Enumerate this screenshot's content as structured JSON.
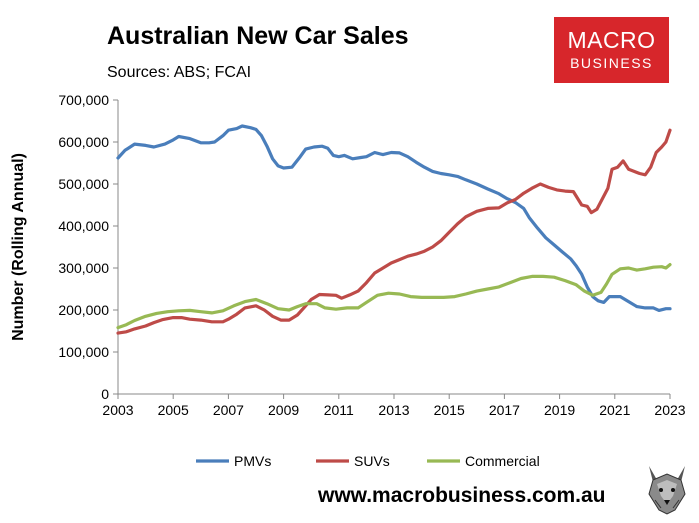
{
  "header": {
    "title": "Australian New Car Sales",
    "subtitle": "Sources: ABS; FCAI"
  },
  "logo": {
    "line1": "MACRO",
    "line2": "BUSINESS",
    "color": "#d7262b"
  },
  "footer": {
    "url": "www.macrobusiness.com.au"
  },
  "chart_data": {
    "type": "line",
    "title": "Australian New Car Sales",
    "ylabel": "Number (Rolling Annual)",
    "xlabel": "",
    "xlim": [
      2003,
      2023
    ],
    "ylim": [
      0,
      700000
    ],
    "x_ticks": [
      2003,
      2005,
      2007,
      2009,
      2011,
      2013,
      2015,
      2017,
      2019,
      2021,
      2023
    ],
    "y_ticks": [
      0,
      100000,
      200000,
      300000,
      400000,
      500000,
      600000,
      700000
    ],
    "y_tick_labels": [
      "0",
      "100,000",
      "200,000",
      "300,000",
      "400,000",
      "500,000",
      "600,000",
      "700,000"
    ],
    "legend_position": "bottom",
    "grid": false,
    "series": [
      {
        "name": "PMVs",
        "color": "#4a7ebb",
        "points": [
          [
            2003.0,
            562000
          ],
          [
            2003.25,
            580000
          ],
          [
            2003.6,
            595000
          ],
          [
            2004.0,
            592000
          ],
          [
            2004.3,
            588000
          ],
          [
            2004.7,
            595000
          ],
          [
            2005.0,
            605000
          ],
          [
            2005.2,
            613000
          ],
          [
            2005.6,
            608000
          ],
          [
            2006.0,
            598000
          ],
          [
            2006.3,
            598000
          ],
          [
            2006.5,
            600000
          ],
          [
            2006.8,
            615000
          ],
          [
            2007.0,
            628000
          ],
          [
            2007.3,
            632000
          ],
          [
            2007.5,
            638000
          ],
          [
            2007.8,
            634000
          ],
          [
            2008.0,
            630000
          ],
          [
            2008.2,
            615000
          ],
          [
            2008.4,
            590000
          ],
          [
            2008.6,
            560000
          ],
          [
            2008.8,
            543000
          ],
          [
            2009.0,
            538000
          ],
          [
            2009.3,
            540000
          ],
          [
            2009.6,
            565000
          ],
          [
            2009.8,
            583000
          ],
          [
            2010.1,
            588000
          ],
          [
            2010.4,
            590000
          ],
          [
            2010.6,
            585000
          ],
          [
            2010.8,
            568000
          ],
          [
            2011.0,
            565000
          ],
          [
            2011.2,
            568000
          ],
          [
            2011.5,
            560000
          ],
          [
            2011.8,
            563000
          ],
          [
            2012.0,
            565000
          ],
          [
            2012.3,
            575000
          ],
          [
            2012.6,
            570000
          ],
          [
            2012.9,
            575000
          ],
          [
            2013.2,
            574000
          ],
          [
            2013.5,
            565000
          ],
          [
            2013.8,
            552000
          ],
          [
            2014.1,
            540000
          ],
          [
            2014.4,
            530000
          ],
          [
            2014.7,
            525000
          ],
          [
            2015.0,
            522000
          ],
          [
            2015.3,
            518000
          ],
          [
            2015.6,
            510000
          ],
          [
            2016.0,
            500000
          ],
          [
            2016.4,
            488000
          ],
          [
            2016.8,
            477000
          ],
          [
            2017.1,
            465000
          ],
          [
            2017.4,
            456000
          ],
          [
            2017.7,
            442000
          ],
          [
            2017.9,
            420000
          ],
          [
            2018.2,
            395000
          ],
          [
            2018.5,
            372000
          ],
          [
            2018.8,
            355000
          ],
          [
            2019.1,
            338000
          ],
          [
            2019.4,
            322000
          ],
          [
            2019.6,
            305000
          ],
          [
            2019.8,
            285000
          ],
          [
            2020.0,
            255000
          ],
          [
            2020.2,
            232000
          ],
          [
            2020.4,
            222000
          ],
          [
            2020.6,
            218000
          ],
          [
            2020.8,
            232000
          ],
          [
            2021.2,
            232000
          ],
          [
            2021.5,
            220000
          ],
          [
            2021.8,
            208000
          ],
          [
            2022.1,
            205000
          ],
          [
            2022.4,
            205000
          ],
          [
            2022.6,
            199000
          ],
          [
            2022.85,
            203000
          ],
          [
            2023.0,
            203000
          ]
        ]
      },
      {
        "name": "SUVs",
        "color": "#be4b48",
        "points": [
          [
            2003.0,
            145000
          ],
          [
            2003.3,
            148000
          ],
          [
            2003.6,
            155000
          ],
          [
            2004.0,
            162000
          ],
          [
            2004.3,
            170000
          ],
          [
            2004.6,
            177000
          ],
          [
            2005.0,
            182000
          ],
          [
            2005.3,
            182000
          ],
          [
            2005.6,
            178000
          ],
          [
            2006.0,
            176000
          ],
          [
            2006.4,
            172000
          ],
          [
            2006.8,
            172000
          ],
          [
            2007.0,
            178000
          ],
          [
            2007.3,
            190000
          ],
          [
            2007.6,
            205000
          ],
          [
            2008.0,
            210000
          ],
          [
            2008.3,
            200000
          ],
          [
            2008.6,
            185000
          ],
          [
            2008.9,
            176000
          ],
          [
            2009.2,
            176000
          ],
          [
            2009.5,
            188000
          ],
          [
            2009.8,
            210000
          ],
          [
            2010.0,
            225000
          ],
          [
            2010.3,
            237000
          ],
          [
            2010.6,
            236000
          ],
          [
            2010.9,
            235000
          ],
          [
            2011.1,
            228000
          ],
          [
            2011.4,
            236000
          ],
          [
            2011.7,
            245000
          ],
          [
            2012.0,
            265000
          ],
          [
            2012.3,
            288000
          ],
          [
            2012.6,
            300000
          ],
          [
            2012.9,
            312000
          ],
          [
            2013.2,
            320000
          ],
          [
            2013.5,
            328000
          ],
          [
            2013.8,
            333000
          ],
          [
            2014.1,
            340000
          ],
          [
            2014.4,
            350000
          ],
          [
            2014.7,
            365000
          ],
          [
            2015.0,
            385000
          ],
          [
            2015.3,
            405000
          ],
          [
            2015.6,
            422000
          ],
          [
            2016.0,
            435000
          ],
          [
            2016.4,
            442000
          ],
          [
            2016.8,
            443000
          ],
          [
            2017.1,
            455000
          ],
          [
            2017.4,
            463000
          ],
          [
            2017.7,
            478000
          ],
          [
            2018.0,
            490000
          ],
          [
            2018.3,
            500000
          ],
          [
            2018.6,
            492000
          ],
          [
            2018.9,
            486000
          ],
          [
            2019.2,
            483000
          ],
          [
            2019.5,
            482000
          ],
          [
            2019.8,
            450000
          ],
          [
            2020.0,
            447000
          ],
          [
            2020.15,
            432000
          ],
          [
            2020.35,
            440000
          ],
          [
            2020.55,
            465000
          ],
          [
            2020.75,
            490000
          ],
          [
            2020.9,
            535000
          ],
          [
            2021.1,
            540000
          ],
          [
            2021.3,
            555000
          ],
          [
            2021.5,
            535000
          ],
          [
            2021.7,
            530000
          ],
          [
            2021.9,
            525000
          ],
          [
            2022.1,
            522000
          ],
          [
            2022.3,
            540000
          ],
          [
            2022.5,
            575000
          ],
          [
            2022.7,
            588000
          ],
          [
            2022.85,
            600000
          ],
          [
            2023.0,
            628000
          ]
        ]
      },
      {
        "name": "Commercial",
        "color": "#98b954",
        "points": [
          [
            2003.0,
            158000
          ],
          [
            2003.3,
            165000
          ],
          [
            2003.6,
            175000
          ],
          [
            2004.0,
            185000
          ],
          [
            2004.4,
            192000
          ],
          [
            2004.8,
            196000
          ],
          [
            2005.2,
            198000
          ],
          [
            2005.6,
            199000
          ],
          [
            2006.0,
            196000
          ],
          [
            2006.4,
            193000
          ],
          [
            2006.8,
            198000
          ],
          [
            2007.2,
            210000
          ],
          [
            2007.6,
            220000
          ],
          [
            2008.0,
            225000
          ],
          [
            2008.4,
            215000
          ],
          [
            2008.8,
            203000
          ],
          [
            2009.2,
            200000
          ],
          [
            2009.5,
            208000
          ],
          [
            2009.8,
            215000
          ],
          [
            2010.2,
            215000
          ],
          [
            2010.5,
            205000
          ],
          [
            2010.9,
            202000
          ],
          [
            2011.3,
            205000
          ],
          [
            2011.7,
            205000
          ],
          [
            2012.0,
            218000
          ],
          [
            2012.4,
            235000
          ],
          [
            2012.8,
            240000
          ],
          [
            2013.2,
            238000
          ],
          [
            2013.6,
            232000
          ],
          [
            2014.0,
            230000
          ],
          [
            2014.4,
            230000
          ],
          [
            2014.8,
            230000
          ],
          [
            2015.2,
            232000
          ],
          [
            2015.6,
            238000
          ],
          [
            2016.0,
            245000
          ],
          [
            2016.4,
            250000
          ],
          [
            2016.8,
            255000
          ],
          [
            2017.2,
            265000
          ],
          [
            2017.6,
            275000
          ],
          [
            2018.0,
            280000
          ],
          [
            2018.4,
            280000
          ],
          [
            2018.8,
            278000
          ],
          [
            2019.2,
            270000
          ],
          [
            2019.6,
            260000
          ],
          [
            2019.9,
            245000
          ],
          [
            2020.2,
            235000
          ],
          [
            2020.5,
            242000
          ],
          [
            2020.7,
            262000
          ],
          [
            2020.9,
            285000
          ],
          [
            2021.2,
            298000
          ],
          [
            2021.5,
            300000
          ],
          [
            2021.8,
            295000
          ],
          [
            2022.1,
            298000
          ],
          [
            2022.4,
            302000
          ],
          [
            2022.7,
            303000
          ],
          [
            2022.85,
            300000
          ],
          [
            2023.0,
            308000
          ]
        ]
      }
    ]
  }
}
